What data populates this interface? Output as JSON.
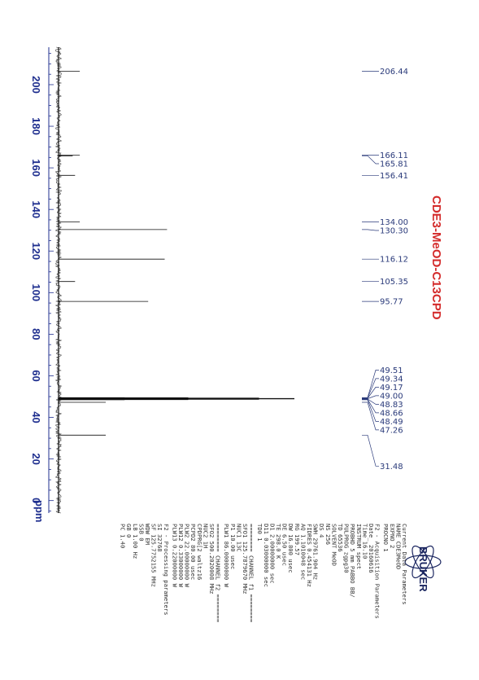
{
  "chart_data": {
    "type": "line",
    "title": "CDE3-MeOD-C13CPD",
    "xlabel": "ppm",
    "xlim": [
      -6,
      218
    ],
    "ticks": [
      200,
      180,
      160,
      140,
      120,
      100,
      80,
      60,
      40,
      20,
      0
    ],
    "tick_labels": [
      "200",
      "180",
      "160",
      "140",
      "120",
      "100",
      "80",
      "60",
      "40",
      "20",
      "0"
    ],
    "peaks": [
      {
        "ppm": 206.44,
        "intensity": 0.09
      },
      {
        "ppm": 166.11,
        "intensity": 0.09
      },
      {
        "ppm": 165.81,
        "intensity": 0.06
      },
      {
        "ppm": 156.41,
        "intensity": 0.07
      },
      {
        "ppm": 134.0,
        "intensity": 0.09
      },
      {
        "ppm": 130.3,
        "intensity": 0.46
      },
      {
        "ppm": 116.12,
        "intensity": 0.45
      },
      {
        "ppm": 105.35,
        "intensity": 0.07
      },
      {
        "ppm": 95.77,
        "intensity": 0.38
      },
      {
        "ppm": 49.51,
        "intensity": 0.28
      },
      {
        "ppm": 49.34,
        "intensity": 0.55
      },
      {
        "ppm": 49.17,
        "intensity": 0.85
      },
      {
        "ppm": 49.0,
        "intensity": 1.0
      },
      {
        "ppm": 48.83,
        "intensity": 0.85
      },
      {
        "ppm": 48.66,
        "intensity": 0.55
      },
      {
        "ppm": 48.49,
        "intensity": 0.28
      },
      {
        "ppm": 47.26,
        "intensity": 0.2
      },
      {
        "ppm": 31.48,
        "intensity": 0.2
      }
    ],
    "peak_labels": [
      "206.44",
      "166.11",
      "165.81",
      "156.41",
      "134.00",
      "130.30",
      "116.12",
      "105.35",
      "95.77",
      "49.51",
      "49.34",
      "49.17",
      "49.00",
      "48.83",
      "48.66",
      "48.49",
      "47.26",
      "31.48"
    ]
  },
  "logo": {
    "text": "BRUKER"
  },
  "parameters": [
    {
      "lines": [
        "Current Data Parameters",
        "NAME        CDE3MeOD",
        "EXPNO              2",
        "PROCNO             1"
      ]
    },
    {
      "lines": [
        "F2 - Acquisition Parameters",
        "Date_          20160616",
        "Time               16.10",
        "INSTRUM           spect",
        "PROBHD   5 mm PABBO BB/",
        "PULPROG          zgpg30",
        "TD                65536",
        "SOLVENT           MeOD",
        "NS                 256",
        "DS                   4",
        "SWH          29761.904 Hz",
        "FIDRES        0.454131 Hz",
        "AQ            1.1010048 sec",
        "RG                199.57",
        "DW                16.800 usec",
        "DE                  6.50 usec",
        "TE               298.0 K",
        "D1           2.00000000 sec",
        "D11          0.03000000 sec",
        "TD0                    1"
      ]
    },
    {
      "lines": [
        "======== CHANNEL f1 ========",
        "SFO1        125.7879670 MHz",
        "NUC1                 13C",
        "P1                 10.00 usec",
        "PLW1         86.00000000 W"
      ]
    },
    {
      "lines": [
        "======== CHANNEL f2 ========",
        "SFO2        500.2020008 MHz",
        "NUC2                  1H",
        "CPDPRG[2           waltz16",
        "PCPD2              80.00 usec",
        "PLW2         22.00000000 W",
        "PLW12         0.33000000 W",
        "PLW13         0.22000000 W"
      ]
    },
    {
      "lines": [
        "F2 - Processing parameters",
        "SI                32768",
        "SF          125.7752155 MHz",
        "WDW                  EM",
        "SSB                    0",
        "LB                 1.00 Hz",
        "GB                     0",
        "PC                 1.40"
      ]
    }
  ]
}
